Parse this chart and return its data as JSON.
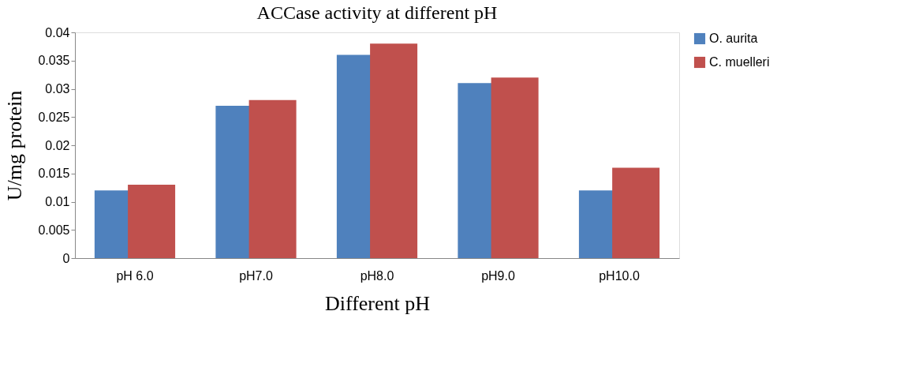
{
  "chart_data": {
    "type": "bar",
    "title": "ACCase activity at different pH",
    "xlabel": "Different pH",
    "ylabel": "U/mg protein",
    "categories": [
      "pH 6.0",
      "pH7.0",
      "pH8.0",
      "pH9.0",
      "pH10.0"
    ],
    "series": [
      {
        "name": "O. aurita",
        "color": "#4f81bd",
        "values": [
          0.012,
          0.027,
          0.036,
          0.031,
          0.012
        ]
      },
      {
        "name": "C. muelleri",
        "color": "#c0504d",
        "values": [
          0.013,
          0.028,
          0.038,
          0.032,
          0.016
        ]
      }
    ],
    "ylim": [
      0,
      0.04
    ],
    "yticks": [
      0,
      0.005,
      0.01,
      0.015,
      0.02,
      0.025,
      0.03,
      0.035,
      0.04
    ],
    "grid": false,
    "legend": "right"
  }
}
